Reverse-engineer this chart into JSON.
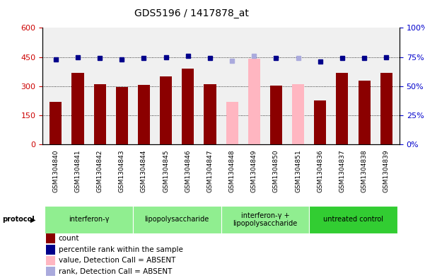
{
  "title": "GDS5196 / 1417878_at",
  "samples": [
    "GSM1304840",
    "GSM1304841",
    "GSM1304842",
    "GSM1304843",
    "GSM1304844",
    "GSM1304845",
    "GSM1304846",
    "GSM1304847",
    "GSM1304848",
    "GSM1304849",
    "GSM1304850",
    "GSM1304851",
    "GSM1304836",
    "GSM1304837",
    "GSM1304838",
    "GSM1304839"
  ],
  "bar_values": [
    220,
    370,
    310,
    295,
    305,
    350,
    390,
    310,
    220,
    440,
    302,
    310,
    225,
    370,
    330,
    370
  ],
  "bar_colors": [
    "#8B0000",
    "#8B0000",
    "#8B0000",
    "#8B0000",
    "#8B0000",
    "#8B0000",
    "#8B0000",
    "#8B0000",
    "#FFB6C1",
    "#FFB6C1",
    "#8B0000",
    "#FFB6C1",
    "#8B0000",
    "#8B0000",
    "#8B0000",
    "#8B0000"
  ],
  "rank_values": [
    73,
    75,
    74,
    73,
    74,
    75,
    76,
    74,
    72,
    76,
    74,
    74,
    71,
    74,
    74,
    75
  ],
  "rank_colors": [
    "#00008B",
    "#00008B",
    "#00008B",
    "#00008B",
    "#00008B",
    "#00008B",
    "#00008B",
    "#00008B",
    "#AAAADD",
    "#AAAADD",
    "#00008B",
    "#AAAADD",
    "#00008B",
    "#00008B",
    "#00008B",
    "#00008B"
  ],
  "protocols": [
    {
      "label": "interferon-γ",
      "start": 0,
      "end": 4,
      "color": "#90EE90"
    },
    {
      "label": "lipopolysaccharide",
      "start": 4,
      "end": 8,
      "color": "#90EE90"
    },
    {
      "label": "interferon-γ +\nlipopolysaccharide",
      "start": 8,
      "end": 12,
      "color": "#90EE90"
    },
    {
      "label": "untreated control",
      "start": 12,
      "end": 16,
      "color": "#32CD32"
    }
  ],
  "ylim_left": [
    0,
    600
  ],
  "ylim_right": [
    0,
    100
  ],
  "yticks_left": [
    0,
    150,
    300,
    450,
    600
  ],
  "yticks_right": [
    0,
    25,
    50,
    75,
    100
  ],
  "yticklabels_left": [
    "0",
    "150",
    "300",
    "450",
    "600"
  ],
  "yticklabels_right": [
    "0%",
    "25%",
    "50%",
    "75%",
    "100%"
  ],
  "left_color": "#CC0000",
  "right_color": "#0000CC",
  "bg_plot": "#F0F0F0",
  "legend_items": [
    {
      "color": "#8B0000",
      "label": "count"
    },
    {
      "color": "#00008B",
      "label": "percentile rank within the sample"
    },
    {
      "color": "#FFB6C1",
      "label": "value, Detection Call = ABSENT"
    },
    {
      "color": "#AAAADD",
      "label": "rank, Detection Call = ABSENT"
    }
  ]
}
